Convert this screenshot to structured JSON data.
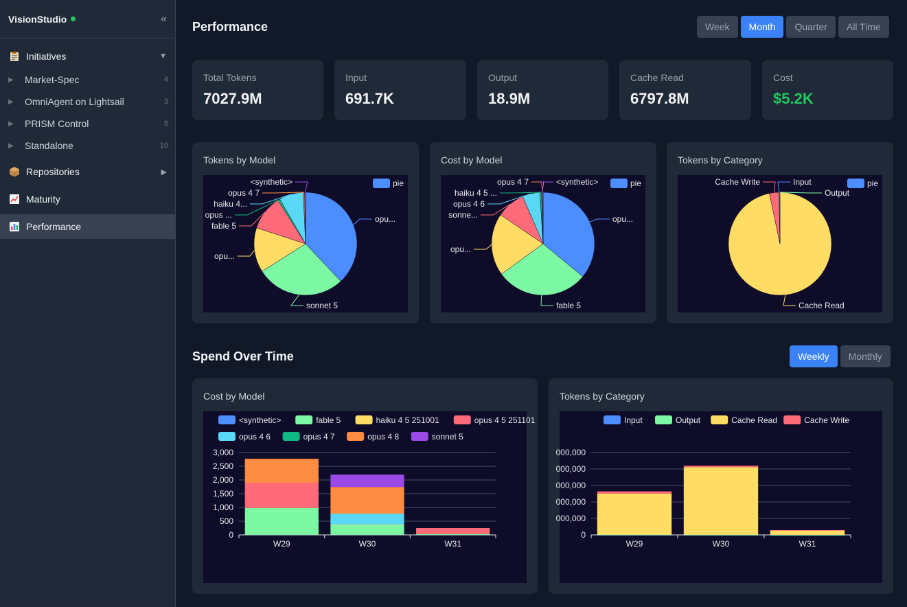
{
  "app": {
    "title": "VisionStudio"
  },
  "sidebar": {
    "collapse_icon": "«",
    "initiatives": {
      "label": "Initiatives",
      "icon": "clipboard-icon",
      "arrow": "▼"
    },
    "sub_items": [
      {
        "label": "Market-Spec",
        "count": "4"
      },
      {
        "label": "OmniAgent on Lightsail",
        "count": "3"
      },
      {
        "label": "PRISM Control",
        "count": "8"
      },
      {
        "label": "Standalone",
        "count": "10"
      }
    ],
    "repositories": {
      "label": "Repositories",
      "icon": "package-icon",
      "arrow": "▶"
    },
    "maturity": {
      "label": "Maturity",
      "icon": "chart-up-icon"
    },
    "performance": {
      "label": "Performance",
      "icon": "bar-chart-icon"
    }
  },
  "header": {
    "title": "Performance",
    "ranges": [
      "Week",
      "Month",
      "Quarter",
      "All Time"
    ],
    "active_range": "Month"
  },
  "stats": [
    {
      "label": "Total Tokens",
      "value": "7027.9M"
    },
    {
      "label": "Input",
      "value": "691.7K"
    },
    {
      "label": "Output",
      "value": "18.9M"
    },
    {
      "label": "Cache Read",
      "value": "6797.8M"
    },
    {
      "label": "Cost",
      "value": "$5.2K"
    }
  ],
  "spend": {
    "title": "Spend Over Time",
    "modes": [
      "Weekly",
      "Monthly"
    ],
    "active_mode": "Weekly"
  },
  "colors": {
    "blue": "#4c8dff",
    "green": "#7cf7a4",
    "yellow": "#ffdc64",
    "red": "#ff6b78",
    "cyan": "#5ad8f5",
    "teal": "#10b981",
    "orange": "#ff8c42",
    "purple": "#9b4ae6"
  },
  "chart_data": [
    {
      "type": "pie",
      "title": "Tokens by Model",
      "legend": "pie",
      "slices": [
        {
          "label": "opu...",
          "value": 38,
          "color": "#4c8dff"
        },
        {
          "label": "sonnet 5",
          "value": 28,
          "color": "#7cf7a4"
        },
        {
          "label": "opu...",
          "value": 14,
          "color": "#ffdc64"
        },
        {
          "label": "fable 5",
          "value": 11,
          "color": "#ff6b78"
        },
        {
          "label": "opus ...",
          "value": 0.7,
          "color": "#10b981"
        },
        {
          "label": "haiku 4...",
          "value": 7.6,
          "color": "#5ad8f5"
        },
        {
          "label": "opus 4 7",
          "value": 0.4,
          "color": "#ff8c42"
        },
        {
          "label": "<synthetic>",
          "value": 0.3,
          "color": "#9b4ae6"
        }
      ]
    },
    {
      "type": "pie",
      "title": "Cost by Model",
      "legend": "pie",
      "slices": [
        {
          "label": "opu...",
          "value": 36,
          "color": "#4c8dff"
        },
        {
          "label": "fable 5",
          "value": 29,
          "color": "#7cf7a4"
        },
        {
          "label": "opu...",
          "value": 19.5,
          "color": "#ffdc64"
        },
        {
          "label": "sonne...",
          "value": 9,
          "color": "#ff6b78"
        },
        {
          "label": "opus 4 6",
          "value": 5.5,
          "color": "#5ad8f5"
        },
        {
          "label": "haiku 4 5 ...",
          "value": 0.5,
          "color": "#10b981"
        },
        {
          "label": "opus 4 7",
          "value": 0.3,
          "color": "#ff8c42"
        },
        {
          "label": "<synthetic>",
          "value": 0.2,
          "color": "#9b4ae6"
        }
      ]
    },
    {
      "type": "pie",
      "title": "Tokens by Category",
      "legend": "pie",
      "slices": [
        {
          "label": "Cache Read",
          "value": 96.7,
          "color": "#ffdc64"
        },
        {
          "label": "Cache Write",
          "value": 3.0,
          "color": "#ff6b78"
        },
        {
          "label": "Input",
          "value": 0.1,
          "color": "#4c8dff"
        },
        {
          "label": "Output",
          "value": 0.2,
          "color": "#7cf7a4"
        }
      ]
    },
    {
      "type": "bar",
      "stacked": true,
      "title": "Cost by Model",
      "categories": [
        "W29",
        "W30",
        "W31"
      ],
      "ylim": [
        0,
        3000
      ],
      "yticks": [
        "0",
        "500",
        "1,000",
        "1,500",
        "2,000",
        "2,500",
        "3,000"
      ],
      "series": [
        {
          "name": "<synthetic>",
          "color": "#4c8dff",
          "values": [
            0,
            0,
            0
          ]
        },
        {
          "name": "fable 5",
          "color": "#7cf7a4",
          "values": [
            980,
            370,
            30
          ]
        },
        {
          "name": "haiku 4 5 251001",
          "color": "#ffdc64",
          "values": [
            0,
            5,
            0
          ]
        },
        {
          "name": "opus 4 5 251101",
          "color": "#ff6b78",
          "values": [
            920,
            0,
            220
          ]
        },
        {
          "name": "opus 4 6",
          "color": "#5ad8f5",
          "values": [
            0,
            400,
            0
          ]
        },
        {
          "name": "opus 4 7",
          "color": "#10b981",
          "values": [
            0,
            0,
            0
          ]
        },
        {
          "name": "opus 4 8",
          "color": "#ff8c42",
          "values": [
            870,
            970,
            0
          ]
        },
        {
          "name": "sonnet 5",
          "color": "#9b4ae6",
          "values": [
            0,
            450,
            0
          ]
        }
      ]
    },
    {
      "type": "bar",
      "stacked": true,
      "title": "Tokens by Category",
      "categories": [
        "W29",
        "W30",
        "W31"
      ],
      "ylim": [
        0,
        5000000000
      ],
      "yticks": [
        "0",
        "000,000",
        "000,000",
        "000,000",
        "000,000",
        "000,000"
      ],
      "series": [
        {
          "name": "Input",
          "color": "#4c8dff",
          "values": [
            500000,
            150000,
            50000
          ]
        },
        {
          "name": "Output",
          "color": "#7cf7a4",
          "values": [
            10000000,
            7000000,
            2000000
          ]
        },
        {
          "name": "Cache Read",
          "color": "#ffdc64",
          "values": [
            2500000000,
            4100000000,
            280000000
          ]
        },
        {
          "name": "Cache Write",
          "color": "#ff6b78",
          "values": [
            130000000,
            90000000,
            10000000
          ]
        }
      ]
    }
  ]
}
